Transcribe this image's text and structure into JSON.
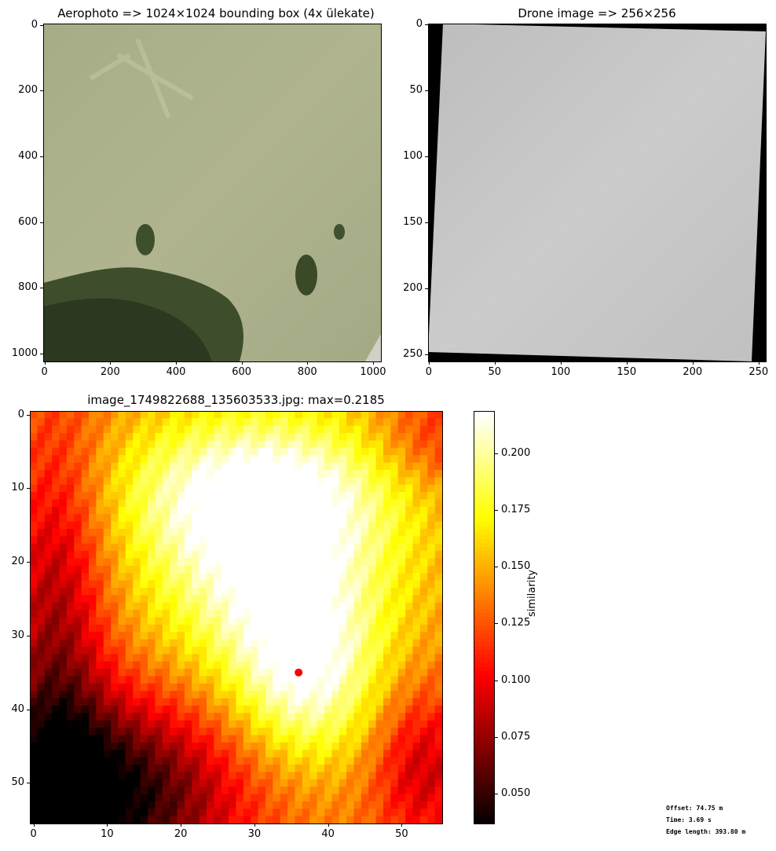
{
  "chart_data": [
    {
      "type": "image",
      "title": "Aerophoto => 1024×1024 bounding box (4x ülekate)",
      "xlim": [
        0,
        1024
      ],
      "ylim": [
        1024,
        0
      ],
      "x_ticks": [
        "0",
        "200",
        "400",
        "600",
        "800",
        "1000"
      ],
      "y_ticks": [
        "0",
        "200",
        "400",
        "600",
        "800",
        "1000"
      ],
      "content": "aerial-photo-grass-field-with-forest-bottom-left",
      "colors": {
        "grass": "#a9b089",
        "forest": "#3b4a2a",
        "dark-forest": "#27321c"
      }
    },
    {
      "type": "image",
      "title": "Drone image => 256×256",
      "xlim": [
        0,
        256
      ],
      "ylim": [
        256,
        0
      ],
      "x_ticks": [
        "0",
        "50",
        "100",
        "150",
        "200",
        "250"
      ],
      "y_ticks": [
        "0",
        "50",
        "100",
        "150",
        "200",
        "250"
      ],
      "content": "grayscale-rotated-drone-image-on-black-background",
      "colors": {
        "background": "#000000",
        "image": "#c8c8c8"
      }
    },
    {
      "type": "heatmap",
      "title": "image_1749822688_135603533.jpg: max=0.2185",
      "xlim": [
        0,
        55
      ],
      "ylim": [
        55,
        0
      ],
      "x_ticks": [
        "0",
        "10",
        "20",
        "30",
        "40",
        "50"
      ],
      "y_ticks": [
        "0",
        "10",
        "20",
        "30",
        "40",
        "50"
      ],
      "colormap": "hot",
      "max": 0.2185,
      "vmin": 0.037,
      "vmax": 0.2185,
      "peak_marker": {
        "x": 36,
        "y": 35,
        "color": "#ff0000"
      },
      "colorbar": {
        "label": "similarity",
        "ticks": [
          "0.050",
          "0.075",
          "0.100",
          "0.125",
          "0.150",
          "0.175",
          "0.200"
        ],
        "tick_values": [
          0.05,
          0.075,
          0.1,
          0.125,
          0.15,
          0.175,
          0.2
        ]
      }
    }
  ],
  "annotations": {
    "offset": "Offset: 74.75 m",
    "time": "Time: 3.69 s",
    "edge_length": "Edge length: 393.80 m"
  }
}
